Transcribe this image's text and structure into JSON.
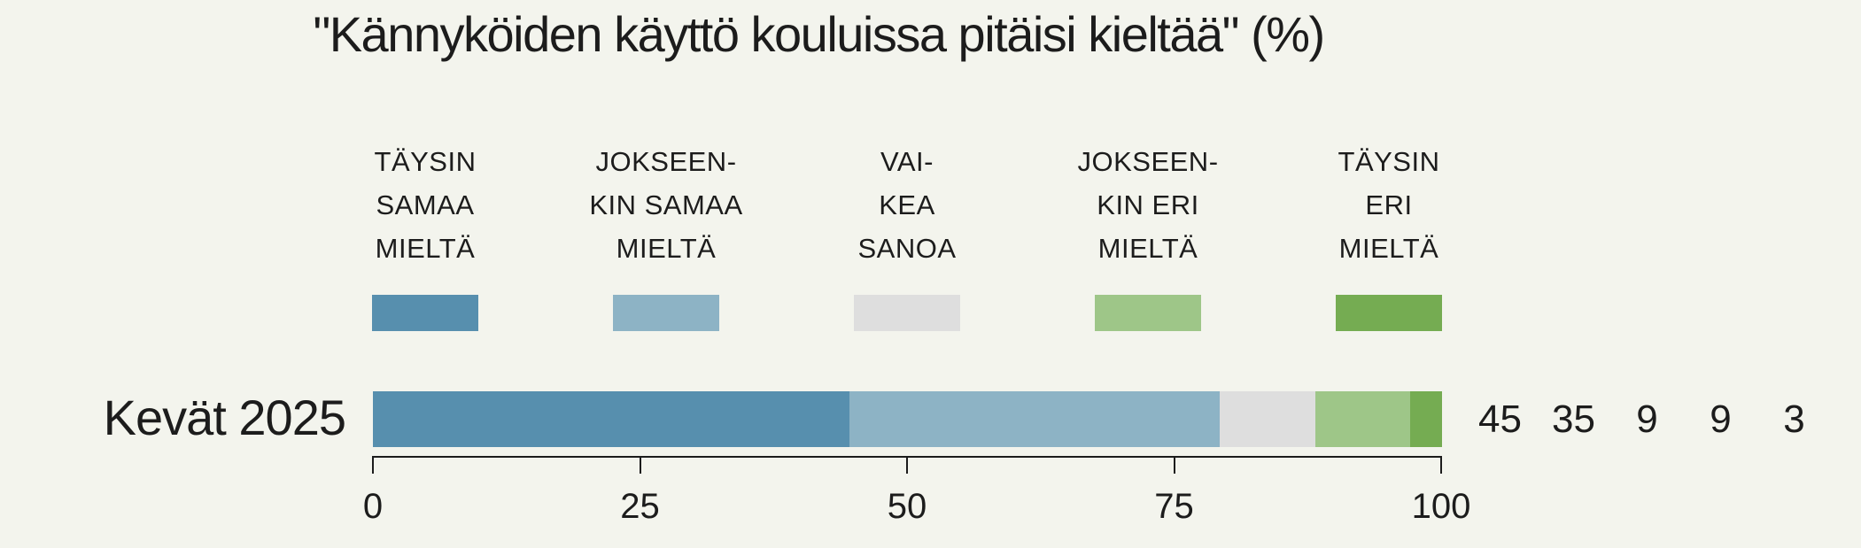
{
  "title": "\"Kännyköiden käyttö kouluissa pitäisi kieltää\" (%)",
  "background_color": "#f3f4ed",
  "text_color": "#1c1c1c",
  "row": {
    "label": "Kevät 2025"
  },
  "legend": {
    "items": [
      {
        "label_lines": [
          "TÄYSIN",
          "SAMAA",
          "MIELTÄ"
        ],
        "color": "#578fae"
      },
      {
        "label_lines": [
          "JOKSEEN-",
          "KIN SAMAA",
          "MIELTÄ"
        ],
        "color": "#8db3c5"
      },
      {
        "label_lines": [
          "VAI-",
          "KEA",
          "SANOA"
        ],
        "color": "#dedede"
      },
      {
        "label_lines": [
          "JOKSEEN-",
          "KIN ERI",
          "MIELTÄ"
        ],
        "color": "#9ec688"
      },
      {
        "label_lines": [
          "TÄYSIN",
          "ERI",
          "MIELTÄ"
        ],
        "color": "#75ac52"
      }
    ]
  },
  "chart_data": {
    "type": "bar",
    "orientation": "horizontal",
    "stacked": true,
    "title": "\"Kännyköiden käyttö kouluissa pitäisi kieltää\" (%)",
    "categories": [
      "Kevät 2025"
    ],
    "series": [
      {
        "name": "Täysin samaa mieltä",
        "values": [
          45
        ],
        "color": "#578fae"
      },
      {
        "name": "Jokseenkin samaa mieltä",
        "values": [
          35
        ],
        "color": "#8db3c5"
      },
      {
        "name": "Vaikea sanoa",
        "values": [
          9
        ],
        "color": "#dedede"
      },
      {
        "name": "Jokseenkin eri mieltä",
        "values": [
          9
        ],
        "color": "#9ec688"
      },
      {
        "name": "Täysin eri mieltä",
        "values": [
          3
        ],
        "color": "#75ac52"
      }
    ],
    "value_labels": [
      45,
      35,
      9,
      9,
      3
    ],
    "xlim": [
      0,
      100
    ],
    "x_ticks": [
      0,
      25,
      50,
      75,
      100
    ],
    "xlabel": "",
    "ylabel": "",
    "grid": false,
    "legend_position": "top"
  }
}
